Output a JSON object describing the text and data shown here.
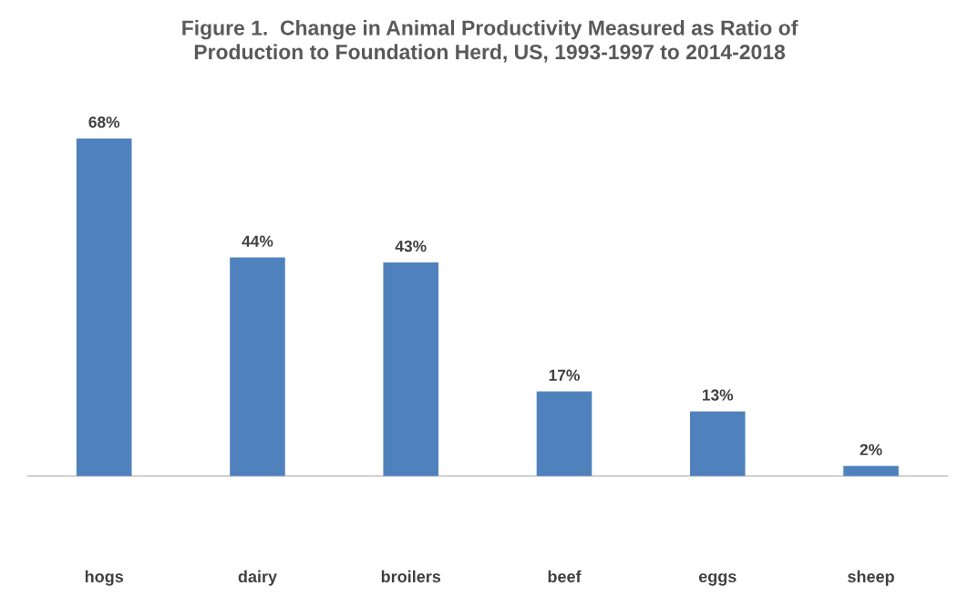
{
  "chart_data": {
    "type": "bar",
    "title": "Figure 1.  Change in Animal Productivity Measured as Ratio of\nProduction to Foundation Herd, US, 1993-1997 to 2014-2018",
    "categories": [
      "hogs",
      "dairy",
      "broilers",
      "beef",
      "eggs",
      "sheep"
    ],
    "values": [
      68,
      44,
      43,
      17,
      13,
      2
    ],
    "value_labels": [
      "68%",
      "44%",
      "43%",
      "17%",
      "13%",
      "2%"
    ],
    "color": "#4f81bd",
    "tick_labels": "x",
    "grid": false,
    "legend": false
  }
}
